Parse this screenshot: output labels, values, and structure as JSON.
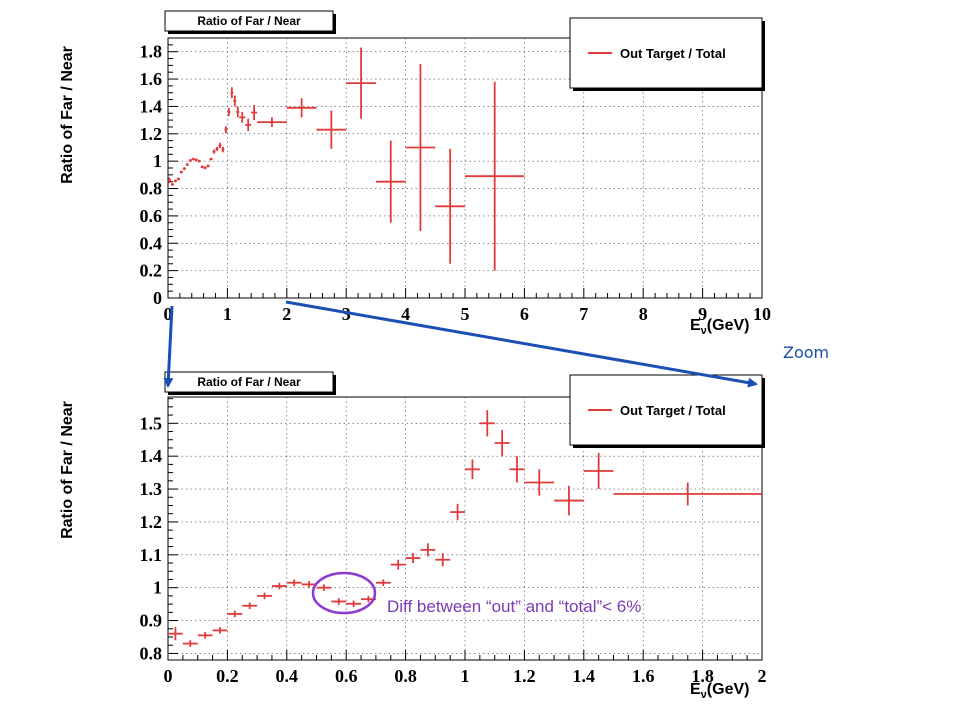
{
  "annotations": {
    "zoom_label": "Zoom",
    "diff_note": "Diff between “out” and “total”< 6%",
    "arrow_color": "#1a4fb5",
    "circle_color": "#8a3ad0",
    "series_color": "#e03a3a"
  },
  "chart_data": [
    {
      "type": "scatter",
      "title": "Ratio of Far / Near",
      "ylabel": "Ratio of Far / Near",
      "xlabel": "E",
      "xlabel_sub": "ν",
      "xlabel_unit": "(GeV)",
      "xlim": [
        0,
        10
      ],
      "ylim": [
        0,
        1.9
      ],
      "xticks": [
        0,
        1,
        2,
        3,
        4,
        5,
        6,
        7,
        8,
        9,
        10
      ],
      "xtick_labels": [
        "0",
        "1",
        "2",
        "3",
        "4",
        "5",
        "6",
        "7",
        "8",
        "9",
        "10"
      ],
      "yticks": [
        0,
        0.2,
        0.4,
        0.6,
        0.8,
        1,
        1.2,
        1.4,
        1.6,
        1.8
      ],
      "ytick_labels": [
        "0",
        "0.2",
        "0.4",
        "0.6",
        "0.8",
        "1",
        "1.2",
        "1.4",
        "1.6",
        "1.8"
      ],
      "grid": true,
      "legend_position": "top-right",
      "series": [
        {
          "name": "Out Target / Total",
          "color": "#e03a3a",
          "points": [
            {
              "x": 0.025,
              "y": 0.86,
              "xerr": 0.025,
              "yerr": 0.02
            },
            {
              "x": 0.075,
              "y": 0.83,
              "xerr": 0.025,
              "yerr": 0.01
            },
            {
              "x": 0.125,
              "y": 0.855,
              "xerr": 0.025,
              "yerr": 0.01
            },
            {
              "x": 0.175,
              "y": 0.87,
              "xerr": 0.025,
              "yerr": 0.01
            },
            {
              "x": 0.225,
              "y": 0.92,
              "xerr": 0.025,
              "yerr": 0.01
            },
            {
              "x": 0.275,
              "y": 0.945,
              "xerr": 0.025,
              "yerr": 0.01
            },
            {
              "x": 0.325,
              "y": 0.975,
              "xerr": 0.025,
              "yerr": 0.01
            },
            {
              "x": 0.375,
              "y": 1.005,
              "xerr": 0.025,
              "yerr": 0.01
            },
            {
              "x": 0.425,
              "y": 1.015,
              "xerr": 0.025,
              "yerr": 0.01
            },
            {
              "x": 0.475,
              "y": 1.01,
              "xerr": 0.025,
              "yerr": 0.01
            },
            {
              "x": 0.525,
              "y": 1.0,
              "xerr": 0.025,
              "yerr": 0.01
            },
            {
              "x": 0.575,
              "y": 0.958,
              "xerr": 0.025,
              "yerr": 0.01
            },
            {
              "x": 0.625,
              "y": 0.951,
              "xerr": 0.025,
              "yerr": 0.01
            },
            {
              "x": 0.675,
              "y": 0.965,
              "xerr": 0.025,
              "yerr": 0.01
            },
            {
              "x": 0.725,
              "y": 1.015,
              "xerr": 0.025,
              "yerr": 0.01
            },
            {
              "x": 0.775,
              "y": 1.07,
              "xerr": 0.025,
              "yerr": 0.015
            },
            {
              "x": 0.825,
              "y": 1.09,
              "xerr": 0.025,
              "yerr": 0.015
            },
            {
              "x": 0.875,
              "y": 1.115,
              "xerr": 0.025,
              "yerr": 0.02
            },
            {
              "x": 0.925,
              "y": 1.085,
              "xerr": 0.025,
              "yerr": 0.02
            },
            {
              "x": 0.975,
              "y": 1.23,
              "xerr": 0.025,
              "yerr": 0.025
            },
            {
              "x": 1.025,
              "y": 1.36,
              "xerr": 0.025,
              "yerr": 0.03
            },
            {
              "x": 1.075,
              "y": 1.5,
              "xerr": 0.025,
              "yerr": 0.04
            },
            {
              "x": 1.125,
              "y": 1.44,
              "xerr": 0.025,
              "yerr": 0.04
            },
            {
              "x": 1.175,
              "y": 1.36,
              "xerr": 0.025,
              "yerr": 0.04
            },
            {
              "x": 1.25,
              "y": 1.32,
              "xerr": 0.05,
              "yerr": 0.04
            },
            {
              "x": 1.35,
              "y": 1.265,
              "xerr": 0.05,
              "yerr": 0.045
            },
            {
              "x": 1.45,
              "y": 1.355,
              "xerr": 0.05,
              "yerr": 0.055
            },
            {
              "x": 1.75,
              "y": 1.285,
              "xerr": 0.25,
              "yerr": 0.035
            },
            {
              "x": 2.25,
              "y": 1.39,
              "xerr": 0.25,
              "yerr": 0.07
            },
            {
              "x": 2.75,
              "y": 1.23,
              "xerr": 0.25,
              "yerr": 0.14
            },
            {
              "x": 3.25,
              "y": 1.57,
              "xerr": 0.25,
              "yerr": 0.26
            },
            {
              "x": 3.75,
              "y": 0.85,
              "xerr": 0.25,
              "yerr": 0.3
            },
            {
              "x": 4.25,
              "y": 1.1,
              "xerr": 0.25,
              "yerr": 0.61
            },
            {
              "x": 4.75,
              "y": 0.67,
              "xerr": 0.25,
              "yerr": 0.42
            },
            {
              "x": 5.5,
              "y": 0.89,
              "xerr": 0.5,
              "yerr": 0.69
            }
          ]
        }
      ]
    },
    {
      "type": "scatter",
      "title": "Ratio of Far / Near",
      "ylabel": "Ratio of Far / Near",
      "xlabel": "E",
      "xlabel_sub": "ν",
      "xlabel_unit": "(GeV)",
      "xlim": [
        0,
        2
      ],
      "ylim": [
        0.78,
        1.58
      ],
      "xticks": [
        0,
        0.2,
        0.4,
        0.6,
        0.8,
        1,
        1.2,
        1.4,
        1.6,
        1.8,
        2
      ],
      "xtick_labels": [
        "0",
        "0.2",
        "0.4",
        "0.6",
        "0.8",
        "1",
        "1.2",
        "1.4",
        "1.6",
        "1.8",
        "2"
      ],
      "yticks": [
        0.8,
        0.9,
        1,
        1.1,
        1.2,
        1.3,
        1.4,
        1.5
      ],
      "ytick_labels": [
        "0.8",
        "0.9",
        "1",
        "1.1",
        "1.2",
        "1.3",
        "1.4",
        "1.5"
      ],
      "grid": true,
      "legend_position": "top-right",
      "series": [
        {
          "name": "Out Target / Total",
          "color": "#e03a3a",
          "points": [
            {
              "x": 0.025,
              "y": 0.86,
              "xerr": 0.025,
              "yerr": 0.02
            },
            {
              "x": 0.075,
              "y": 0.83,
              "xerr": 0.025,
              "yerr": 0.01
            },
            {
              "x": 0.125,
              "y": 0.855,
              "xerr": 0.025,
              "yerr": 0.01
            },
            {
              "x": 0.175,
              "y": 0.87,
              "xerr": 0.025,
              "yerr": 0.01
            },
            {
              "x": 0.225,
              "y": 0.92,
              "xerr": 0.025,
              "yerr": 0.01
            },
            {
              "x": 0.275,
              "y": 0.945,
              "xerr": 0.025,
              "yerr": 0.01
            },
            {
              "x": 0.325,
              "y": 0.975,
              "xerr": 0.025,
              "yerr": 0.01
            },
            {
              "x": 0.375,
              "y": 1.005,
              "xerr": 0.025,
              "yerr": 0.01
            },
            {
              "x": 0.425,
              "y": 1.015,
              "xerr": 0.025,
              "yerr": 0.01
            },
            {
              "x": 0.475,
              "y": 1.01,
              "xerr": 0.025,
              "yerr": 0.01
            },
            {
              "x": 0.525,
              "y": 1.0,
              "xerr": 0.025,
              "yerr": 0.01
            },
            {
              "x": 0.575,
              "y": 0.958,
              "xerr": 0.025,
              "yerr": 0.01
            },
            {
              "x": 0.625,
              "y": 0.951,
              "xerr": 0.025,
              "yerr": 0.01
            },
            {
              "x": 0.675,
              "y": 0.965,
              "xerr": 0.025,
              "yerr": 0.01
            },
            {
              "x": 0.725,
              "y": 1.015,
              "xerr": 0.025,
              "yerr": 0.01
            },
            {
              "x": 0.775,
              "y": 1.07,
              "xerr": 0.025,
              "yerr": 0.015
            },
            {
              "x": 0.825,
              "y": 1.09,
              "xerr": 0.025,
              "yerr": 0.015
            },
            {
              "x": 0.875,
              "y": 1.115,
              "xerr": 0.025,
              "yerr": 0.02
            },
            {
              "x": 0.925,
              "y": 1.085,
              "xerr": 0.025,
              "yerr": 0.02
            },
            {
              "x": 0.975,
              "y": 1.23,
              "xerr": 0.025,
              "yerr": 0.025
            },
            {
              "x": 1.025,
              "y": 1.36,
              "xerr": 0.025,
              "yerr": 0.03
            },
            {
              "x": 1.075,
              "y": 1.5,
              "xerr": 0.025,
              "yerr": 0.04
            },
            {
              "x": 1.125,
              "y": 1.44,
              "xerr": 0.025,
              "yerr": 0.04
            },
            {
              "x": 1.175,
              "y": 1.36,
              "xerr": 0.025,
              "yerr": 0.04
            },
            {
              "x": 1.25,
              "y": 1.32,
              "xerr": 0.05,
              "yerr": 0.04
            },
            {
              "x": 1.35,
              "y": 1.265,
              "xerr": 0.05,
              "yerr": 0.045
            },
            {
              "x": 1.45,
              "y": 1.355,
              "xerr": 0.05,
              "yerr": 0.055
            },
            {
              "x": 1.75,
              "y": 1.285,
              "xerr": 0.25,
              "yerr": 0.035
            }
          ]
        }
      ]
    }
  ]
}
